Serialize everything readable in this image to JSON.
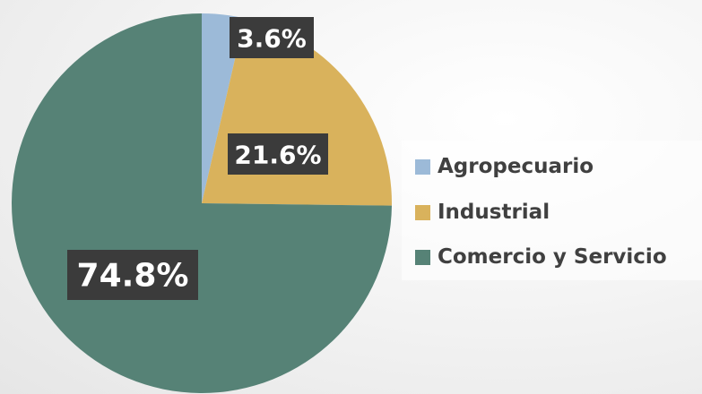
{
  "chart_data": {
    "type": "pie",
    "start_angle_deg": 0,
    "direction": "clockwise",
    "slices": [
      {
        "name": "Agropecuario",
        "value": 3.6,
        "label": "3.6%",
        "color": "#9cbad8"
      },
      {
        "name": "Industrial",
        "value": 21.6,
        "label": "21.6%",
        "color": "#d9b25c"
      },
      {
        "name": "Comercio y Servicio",
        "value": 74.8,
        "label": "74.8%",
        "color": "#568276"
      }
    ],
    "legend": {
      "position": "right",
      "items": [
        "Agropecuario",
        "Industrial",
        "Comercio y Servicio"
      ]
    },
    "data_labels": {
      "background": "#3b3b3b",
      "text_color": "#ffffff"
    }
  }
}
